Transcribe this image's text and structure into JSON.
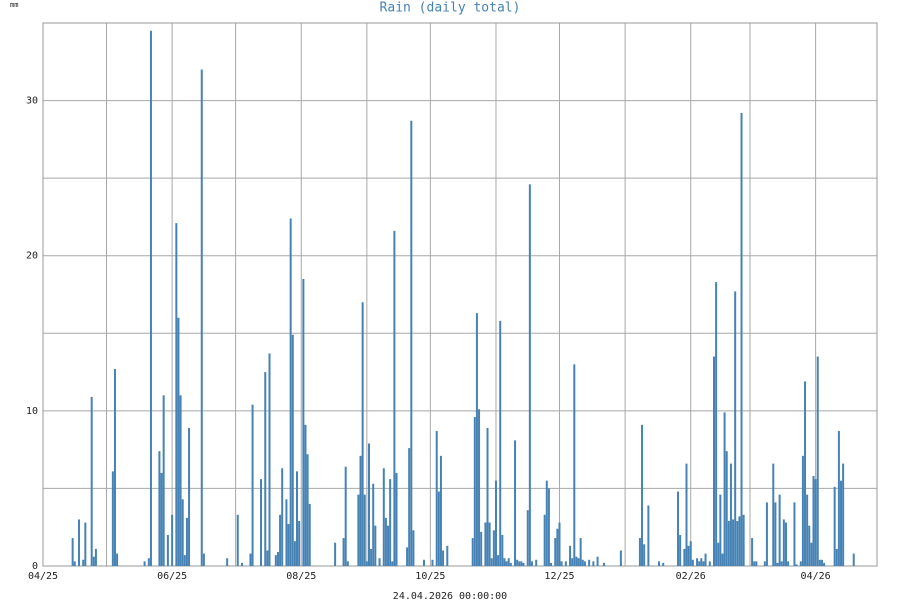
{
  "chart_data": {
    "type": "bar",
    "title": "Rain (daily total)",
    "y_unit": "mm",
    "footer": "24.04.2026 00:00:00",
    "color": "#4682b4",
    "x": [
      14,
      15,
      17,
      19,
      20,
      23,
      24,
      25,
      33,
      34,
      35,
      48,
      50,
      51,
      55,
      56,
      57,
      59,
      61,
      63,
      64,
      65,
      66,
      67,
      68,
      69,
      75,
      76,
      87,
      92,
      94,
      98,
      99,
      103,
      105,
      106,
      107,
      110,
      111,
      112,
      113,
      115,
      116,
      117,
      118,
      119,
      120,
      121,
      123,
      124,
      125,
      126,
      138,
      142,
      143,
      144,
      149,
      150,
      151,
      152,
      153,
      154,
      155,
      156,
      157,
      159,
      161,
      162,
      163,
      164,
      165,
      166,
      167,
      172,
      173,
      174,
      175,
      180,
      184,
      186,
      187,
      188,
      189,
      191,
      203,
      204,
      205,
      206,
      207,
      209,
      210,
      211,
      212,
      213,
      214,
      215,
      216,
      217,
      218,
      219,
      220,
      221,
      223,
      224,
      225,
      226,
      227,
      229,
      230,
      231,
      233,
      237,
      238,
      239,
      240,
      242,
      243,
      244,
      245,
      247,
      249,
      250,
      251,
      252,
      253,
      254,
      255,
      256,
      258,
      260,
      262,
      265,
      273,
      282,
      283,
      284,
      286,
      291,
      293,
      300,
      301,
      303,
      304,
      305,
      306,
      307,
      309,
      310,
      311,
      312,
      313,
      315,
      317,
      318,
      319,
      320,
      321,
      322,
      323,
      324,
      325,
      326,
      327,
      328,
      329,
      330,
      331,
      335,
      336,
      337,
      341,
      342,
      345,
      346,
      347,
      348,
      349,
      350,
      351,
      352,
      355,
      356,
      358,
      359,
      360,
      361,
      362,
      363,
      364,
      365,
      366,
      367,
      368,
      369,
      374,
      375,
      376,
      377,
      378,
      383
    ],
    "values": [
      1.8,
      0.3,
      3.0,
      0.4,
      2.8,
      10.9,
      0.6,
      1.1,
      6.1,
      12.7,
      0.8,
      0.3,
      0.5,
      34.5,
      7.4,
      6.0,
      11.0,
      2.0,
      3.3,
      22.1,
      16.0,
      11.0,
      4.3,
      0.7,
      3.1,
      8.9,
      32.0,
      0.8,
      0.5,
      3.3,
      0.2,
      0.8,
      10.4,
      5.6,
      12.5,
      1.0,
      13.7,
      0.7,
      0.9,
      3.3,
      6.3,
      4.3,
      2.7,
      22.4,
      14.9,
      1.6,
      6.1,
      2.9,
      18.5,
      9.1,
      7.2,
      4.0,
      1.5,
      1.8,
      6.4,
      0.3,
      4.6,
      7.1,
      17.0,
      4.6,
      0.3,
      7.9,
      1.1,
      5.3,
      2.6,
      0.5,
      6.3,
      3.1,
      2.6,
      5.6,
      0.3,
      21.6,
      6.0,
      1.2,
      7.6,
      28.7,
      2.3,
      0.4,
      0.4,
      8.7,
      4.8,
      7.1,
      1.0,
      1.3,
      1.8,
      9.6,
      16.3,
      10.1,
      2.2,
      2.8,
      8.9,
      2.8,
      0.5,
      2.3,
      5.5,
      0.7,
      15.8,
      2.0,
      0.5,
      0.3,
      0.5,
      0.2,
      8.1,
      0.4,
      0.3,
      0.3,
      0.2,
      3.6,
      24.6,
      0.3,
      0.4,
      3.3,
      5.5,
      5.0,
      0.2,
      1.8,
      2.4,
      2.8,
      0.3,
      0.3,
      1.3,
      0.5,
      13.0,
      0.6,
      0.5,
      1.8,
      0.4,
      0.3,
      0.4,
      0.3,
      0.6,
      0.2,
      1.0,
      1.8,
      9.1,
      1.4,
      3.9,
      0.3,
      0.2,
      4.8,
      2.0,
      1.1,
      6.6,
      1.3,
      1.6,
      0.4,
      0.5,
      0.3,
      0.5,
      0.3,
      0.8,
      0.3,
      13.5,
      18.3,
      1.5,
      4.6,
      0.8,
      9.9,
      7.4,
      2.9,
      6.6,
      3.0,
      17.7,
      2.9,
      3.2,
      29.2,
      3.3,
      1.8,
      0.3,
      0.3,
      0.3,
      4.1,
      6.6,
      4.1,
      0.2,
      4.6,
      0.3,
      3.0,
      2.8,
      0.3,
      4.1,
      0.1,
      0.3,
      7.1,
      11.9,
      4.6,
      2.6,
      1.5,
      5.8,
      5.6,
      13.5,
      0.4,
      0.4,
      0.2,
      5.1,
      1.1,
      8.7,
      5.5,
      6.6,
      0.8
    ],
    "xlim": [
      0,
      394
    ],
    "xticks": [
      {
        "value": 0,
        "label": "04/25"
      },
      {
        "value": 61,
        "label": "06/25"
      },
      {
        "value": 122,
        "label": "08/25"
      },
      {
        "value": 183,
        "label": "10/25"
      },
      {
        "value": 244,
        "label": "12/25"
      },
      {
        "value": 306,
        "label": "02/26"
      },
      {
        "value": 365,
        "label": "04/26"
      }
    ],
    "xgrid": [
      30,
      91,
      153,
      214,
      275,
      334
    ],
    "ylim": [
      0,
      35
    ],
    "yticks": [
      0,
      10,
      20,
      30
    ],
    "ygrid": [
      5,
      15,
      25
    ],
    "grid": true
  }
}
